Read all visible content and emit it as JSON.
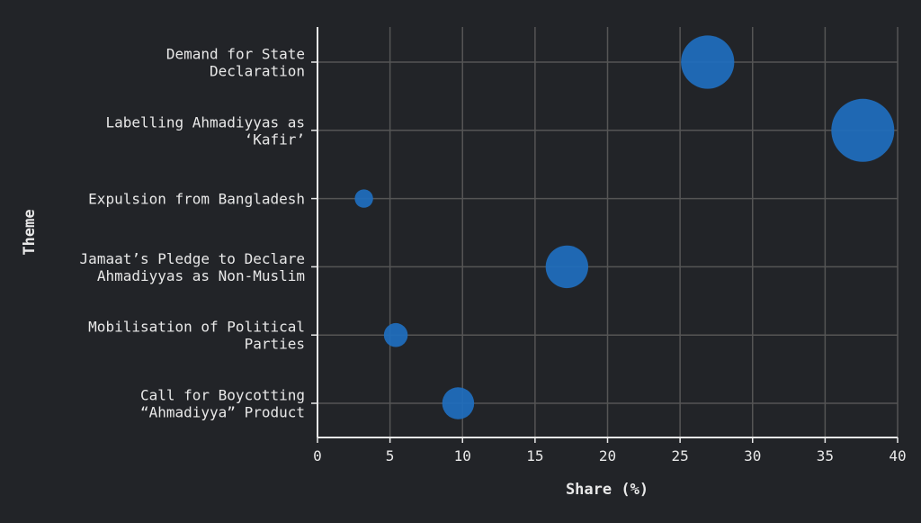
{
  "chart_data": {
    "type": "scatter",
    "xlabel": "Share (%)",
    "ylabel": "Theme",
    "xlim": [
      0,
      40
    ],
    "xticks": [
      "0",
      "5",
      "10",
      "15",
      "20",
      "25",
      "30",
      "35",
      "40"
    ],
    "grid": true,
    "colors": {
      "point": "#1f6fbf",
      "background": "#222428",
      "grid": "#555555",
      "axis": "#e8e8e8"
    },
    "categories": [
      [
        "Demand for State",
        "Declaration"
      ],
      [
        "Labelling Ahmadiyyas as",
        "‘Kafir’"
      ],
      [
        "Expulsion from Bangladesh"
      ],
      [
        "Jamaat’s Pledge to Declare",
        "Ahmadiyyas as Non-Muslim"
      ],
      [
        "Mobilisation of Political",
        "Parties"
      ],
      [
        "Call for Boycotting",
        "“Ahmadiyya” Product"
      ]
    ],
    "values": [
      26.9,
      37.6,
      3.2,
      17.2,
      5.4,
      9.7
    ]
  }
}
